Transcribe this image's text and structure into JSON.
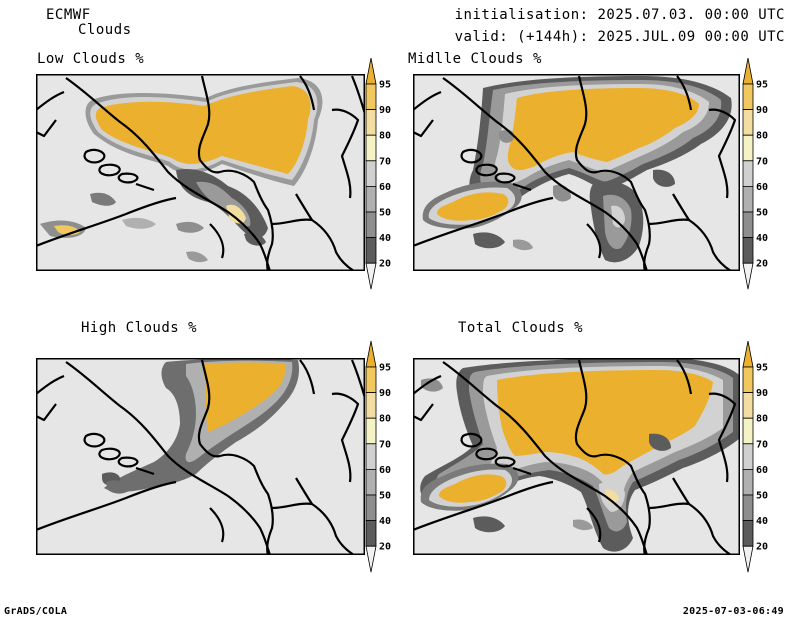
{
  "header": {
    "model": "ECMWF",
    "product": "Clouds",
    "init_label": "initialisation: 2025.07.03. 00:00 UTC",
    "valid_label": "valid: (+144h): 2025.JUL.09 00:00 UTC"
  },
  "panels": [
    {
      "title": "Low Clouds %"
    },
    {
      "title": "Midlle Clouds %"
    },
    {
      "title": "High Clouds %"
    },
    {
      "title": "Total Clouds %"
    }
  ],
  "colorbar": {
    "levels": [
      "95",
      "90",
      "80",
      "70",
      "60",
      "50",
      "40",
      "20"
    ],
    "colors": [
      "#ebb12e",
      "#f1c85f",
      "#f3dea2",
      "#f5f3c6",
      "#d0d0d0",
      "#b0b0b0",
      "#8e8e8e",
      "#5c5c5c",
      "#f2f2f2"
    ]
  },
  "footer": {
    "left": "GrADS/COLA",
    "right": "2025-07-03-06:49"
  }
}
